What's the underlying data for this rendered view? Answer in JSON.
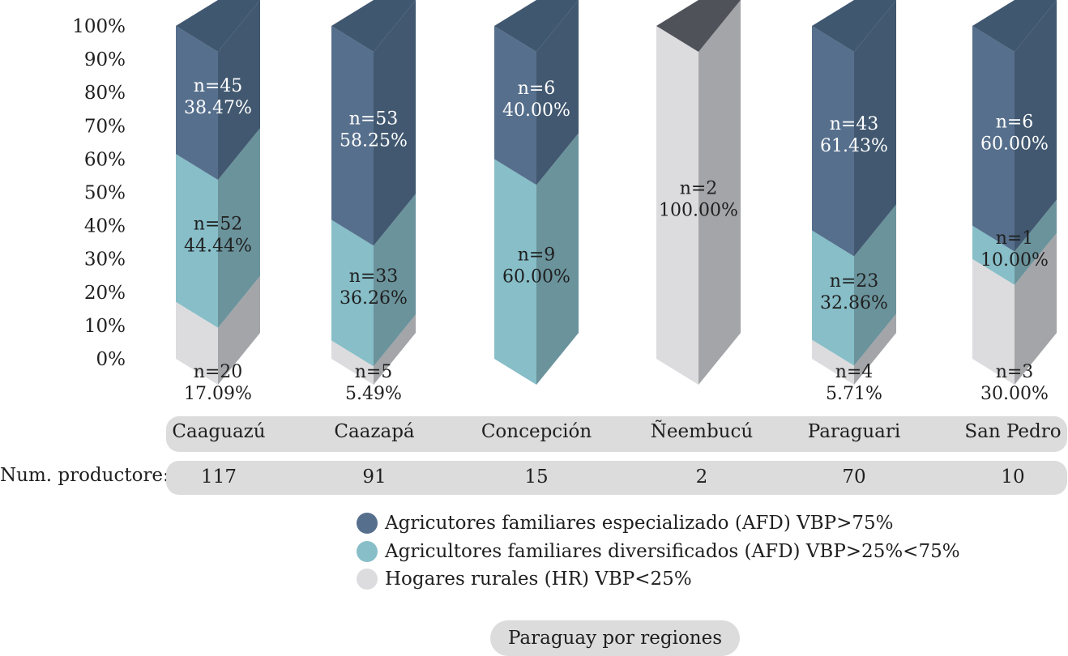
{
  "chart_data": {
    "type": "bar",
    "stacked": true,
    "normalized": true,
    "y_ticks": [
      "0%",
      "10%",
      "20%",
      "30%",
      "40%",
      "50%",
      "60%",
      "70%",
      "80%",
      "90%",
      "100%"
    ],
    "ylim": [
      0,
      100
    ],
    "categories": [
      "Caaguazú",
      "Caazapá",
      "Concepción",
      "Ñeembucú",
      "Paraguari",
      "San Pedro"
    ],
    "series": [
      {
        "name": "Hogares rurales (HR) VBP<25%",
        "key": "hr",
        "values": [
          17.09,
          5.49,
          0,
          100.0,
          5.71,
          30.0
        ],
        "labels": [
          {
            "n": "n=20",
            "pct": "17.09%"
          },
          {
            "n": "n=5",
            "pct": "5.49%"
          },
          null,
          {
            "n": "n=2",
            "pct": "100.00%"
          },
          {
            "n": "n=4",
            "pct": "5.71%"
          },
          {
            "n": "n=3",
            "pct": "30.00%"
          }
        ]
      },
      {
        "name": "Agricultores familiares diversificados (AFD) VBP>25%<75%",
        "key": "afd_div",
        "values": [
          44.44,
          36.26,
          60.0,
          0,
          32.86,
          10.0
        ],
        "labels": [
          {
            "n": "n=52",
            "pct": "44.44%"
          },
          {
            "n": "n=33",
            "pct": "36.26%"
          },
          {
            "n": "n=9",
            "pct": "60.00%"
          },
          null,
          {
            "n": "n=23",
            "pct": "32.86%"
          },
          {
            "n": "n=1",
            "pct": "10.00%"
          }
        ]
      },
      {
        "name": "Agricutores familiares especializado (AFD) VBP>75%",
        "key": "afd_esp",
        "values": [
          38.47,
          58.25,
          40.0,
          0,
          61.43,
          60.0
        ],
        "labels": [
          {
            "n": "n=45",
            "pct": "38.47%"
          },
          {
            "n": "n=53",
            "pct": "58.25%"
          },
          {
            "n": "n=6",
            "pct": "40.00%"
          },
          null,
          {
            "n": "n=43",
            "pct": "61.43%"
          },
          {
            "n": "n=6",
            "pct": "60.00%"
          }
        ]
      }
    ],
    "colors": {
      "afd_esp": {
        "front": "#566f8c",
        "side": "#415870",
        "top": "#405770"
      },
      "afd_div": {
        "front": "#87bec8",
        "side": "#6b939c",
        "top": "#87bec8"
      },
      "hr": {
        "front": "#dcdcde",
        "side": "#a4a5a9",
        "top": "#4f5259"
      }
    }
  },
  "regions": [
    "Caaguazú",
    "Caazapá",
    "Concepción",
    "Ñeembucú",
    "Paraguari",
    "San Pedro"
  ],
  "num_productores": {
    "label": "Num. productore:",
    "values": [
      "117",
      "91",
      "15",
      "2",
      "70",
      "10"
    ]
  },
  "legend": [
    {
      "label": "Agricutores familiares especializado (AFD) VBP>75%",
      "color": "#566f8c"
    },
    {
      "label": "Agricultores familiares diversificados (AFD) VBP>25%<75%",
      "color": "#87bec8"
    },
    {
      "label": "Hogares rurales (HR) VBP<25%",
      "color": "#dcdcde"
    }
  ],
  "footer": "Paraguay por regiones"
}
